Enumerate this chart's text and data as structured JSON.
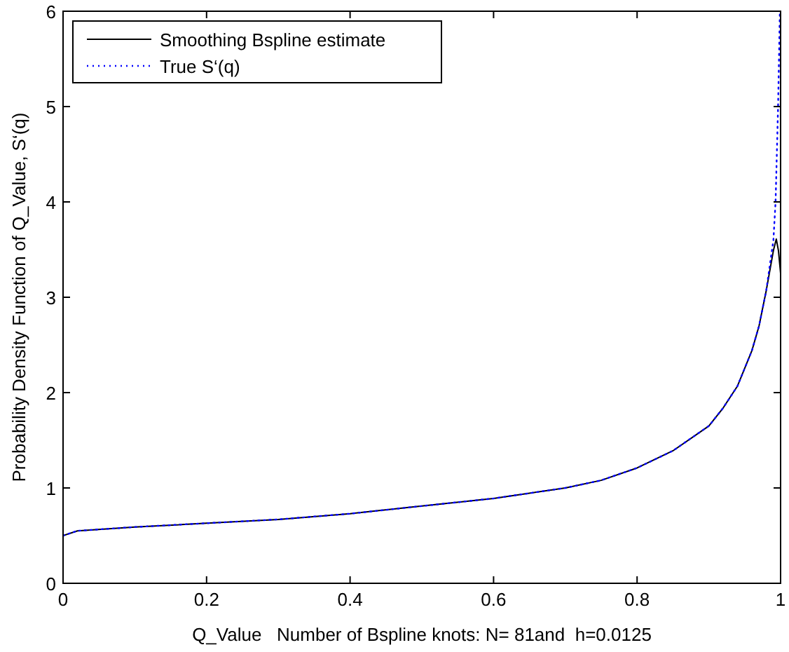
{
  "chart_data": {
    "type": "line",
    "xlabel": "Q_Value   Number of Bspline knots: N= 81and  h=0.0125",
    "ylabel": "Probability Density Function of Q_Value, S‘(q)",
    "xlim": [
      0,
      1
    ],
    "ylim": [
      0,
      6
    ],
    "xticks": [
      0,
      0.2,
      0.4,
      0.6,
      0.8,
      1
    ],
    "yticks": [
      0,
      1,
      2,
      3,
      4,
      5,
      6
    ],
    "legend": "top left",
    "grid": false,
    "series": [
      {
        "name": "Smoothing Bspline estimate",
        "color": "#000000",
        "line_style": "solid",
        "x": [
          0,
          0.02,
          0.1,
          0.2,
          0.3,
          0.4,
          0.5,
          0.6,
          0.7,
          0.75,
          0.8,
          0.85,
          0.9,
          0.92,
          0.94,
          0.96,
          0.97,
          0.98,
          0.99,
          0.994,
          0.997,
          1
        ],
        "values": [
          0.5,
          0.55,
          0.59,
          0.63,
          0.67,
          0.73,
          0.81,
          0.89,
          1,
          1.08,
          1.21,
          1.39,
          1.65,
          1.84,
          2.07,
          2.44,
          2.7,
          3.07,
          3.49,
          3.61,
          3.49,
          3.25
        ]
      },
      {
        "name": "True S‘(q)",
        "color": "#0000ff",
        "line_style": "dotted",
        "x": [
          0,
          0.02,
          0.1,
          0.2,
          0.3,
          0.4,
          0.5,
          0.6,
          0.7,
          0.75,
          0.8,
          0.85,
          0.9,
          0.92,
          0.94,
          0.96,
          0.97,
          0.98,
          0.99,
          0.993,
          0.9965,
          0.999
        ],
        "values": [
          0.5,
          0.55,
          0.59,
          0.63,
          0.67,
          0.73,
          0.81,
          0.89,
          1,
          1.08,
          1.21,
          1.39,
          1.65,
          1.84,
          2.07,
          2.44,
          2.7,
          3.07,
          3.6,
          4,
          5,
          6
        ]
      }
    ]
  }
}
